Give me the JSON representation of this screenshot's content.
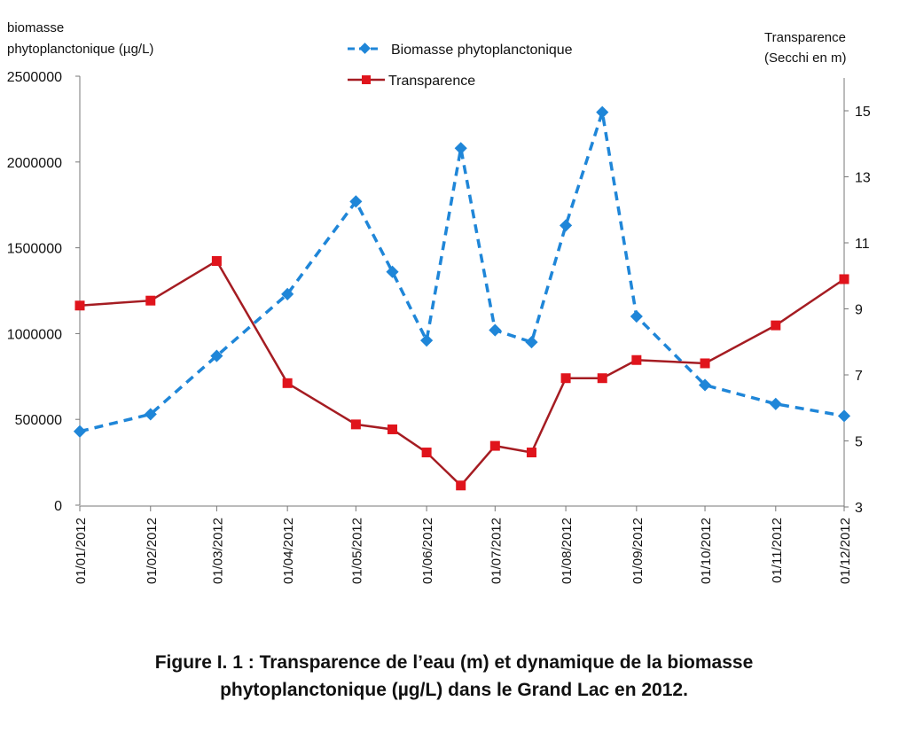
{
  "chart_data": {
    "type": "line",
    "caption_line1": "Figure I. 1 : Transparence de l’eau (m) et dynamique de la biomasse",
    "caption_line2": "phytoplanctonique (µg/L) dans le Grand Lac en 2012.",
    "ylabel_left_line1": "biomasse",
    "ylabel_left_line2": "phytoplanctonique (µg/L)",
    "ylabel_right_line1": "Transparence",
    "ylabel_right_line2": "(Secchi en m)",
    "ylim_left": [
      0,
      2500000
    ],
    "ylim_right": [
      3,
      16
    ],
    "yticks_left": [
      "0",
      "500000",
      "1000000",
      "1500000",
      "2000000",
      "2500000"
    ],
    "yticks_right": [
      "3",
      "5",
      "7",
      "9",
      "11",
      "13",
      "15"
    ],
    "xticks": [
      "01/01/2012",
      "01/02/2012",
      "01/03/2012",
      "01/04/2012",
      "01/05/2012",
      "01/06/2012",
      "01/07/2012",
      "01/08/2012",
      "01/09/2012",
      "01/10/2012",
      "01/11/2012",
      "01/12/2012"
    ],
    "grid": false,
    "legend_position": "top-center",
    "series": [
      {
        "name": "Biomasse phytoplanctonique",
        "axis": "left",
        "color": "#1f86d8",
        "style": "dashed",
        "marker": "diamond",
        "x": [
          "2012-01-01",
          "2012-02-01",
          "2012-03-01",
          "2012-04-01",
          "2012-05-01",
          "2012-05-17",
          "2012-06-01",
          "2012-06-16",
          "2012-07-01",
          "2012-07-17",
          "2012-08-01",
          "2012-08-17",
          "2012-09-01",
          "2012-10-01",
          "2012-11-01",
          "2012-12-01"
        ],
        "values": [
          430000,
          530000,
          870000,
          1230000,
          1770000,
          1360000,
          960000,
          2080000,
          1020000,
          950000,
          1630000,
          2290000,
          1100000,
          700000,
          590000,
          520000
        ]
      },
      {
        "name": "Transparence",
        "axis": "right",
        "color": "#a51c22",
        "marker_color": "#e0141c",
        "style": "solid",
        "marker": "square",
        "x": [
          "2012-01-01",
          "2012-02-01",
          "2012-03-01",
          "2012-04-01",
          "2012-05-01",
          "2012-05-17",
          "2012-06-01",
          "2012-06-16",
          "2012-07-01",
          "2012-07-17",
          "2012-08-01",
          "2012-08-17",
          "2012-09-01",
          "2012-10-01",
          "2012-11-01",
          "2012-12-01"
        ],
        "values": [
          9.1,
          9.25,
          10.45,
          6.75,
          5.5,
          5.35,
          4.65,
          3.65,
          4.85,
          4.65,
          6.9,
          6.9,
          7.45,
          7.35,
          8.5,
          9.9
        ]
      }
    ]
  }
}
